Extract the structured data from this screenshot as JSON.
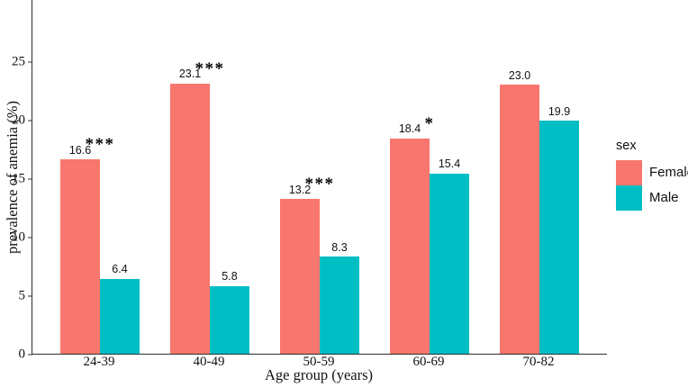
{
  "chart_data": {
    "type": "bar",
    "title": "",
    "xlabel": "Age group (years)",
    "ylabel": "prevalence of anemia (%)",
    "categories": [
      "24-39",
      "40-49",
      "50-59",
      "60-69",
      "70-82"
    ],
    "series": [
      {
        "name": "Female",
        "color": "#F8766D",
        "values": [
          16.6,
          23.1,
          13.2,
          18.4,
          23.0
        ]
      },
      {
        "name": "Male",
        "color": "#00BFC4",
        "values": [
          6.4,
          5.8,
          8.3,
          15.4,
          19.9
        ]
      }
    ],
    "significance_markers": [
      "***",
      "***",
      "***",
      "*",
      ""
    ],
    "yticks": [
      0,
      5,
      10,
      15,
      20,
      25
    ],
    "ylim": [
      0,
      30.2
    ],
    "grid": false,
    "legend": {
      "title": "sex",
      "entries": [
        "Female",
        "Male"
      ],
      "position": "right"
    }
  },
  "colors": {
    "female": "#F8766D",
    "male": "#00BFC4",
    "axis": "#2e2e2e",
    "text": "#111111",
    "background": "#FFFFFF"
  }
}
